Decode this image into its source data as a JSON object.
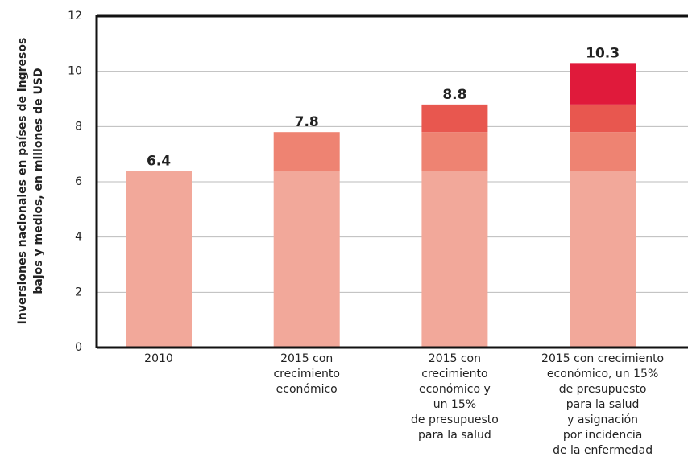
{
  "chart_data": {
    "type": "stacked-bar",
    "ylabel": [
      "Inversiones nacionales en países de ingresos",
      "bajos y medios, en millones de USD"
    ],
    "categories": [
      [
        "2010"
      ],
      [
        "2015 con",
        "crecimiento",
        "económico"
      ],
      [
        "2015 con",
        "crecimiento",
        "económico y",
        "un 15%",
        "de presupuesto",
        "para la salud"
      ],
      [
        "2015 con crecimiento",
        "económico, un 15%",
        "de presupuesto",
        "para la salud",
        "y asignación",
        "por incidencia",
        "de la enfermedad"
      ]
    ],
    "series": [
      {
        "color": "#f2a89a",
        "values": [
          6.4,
          6.4,
          6.4,
          6.4
        ]
      },
      {
        "color": "#ee8372",
        "values": [
          null,
          1.4,
          1.4,
          1.4
        ]
      },
      {
        "color": "#e8574f",
        "values": [
          null,
          null,
          1.0,
          1.0
        ]
      },
      {
        "color": "#e01a3b",
        "values": [
          null,
          null,
          null,
          1.5
        ]
      }
    ],
    "totals": [
      6.4,
      7.8,
      8.8,
      10.3
    ],
    "ylim": [
      0,
      12
    ],
    "yticks": [
      0,
      2,
      4,
      6,
      8,
      10,
      12
    ],
    "grid": true
  }
}
